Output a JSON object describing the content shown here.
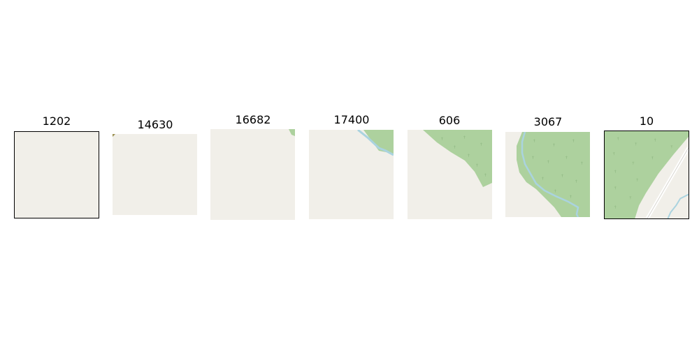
{
  "tiles": [
    {
      "label": "1202",
      "content": "blank land"
    },
    {
      "label": "14630",
      "content": "blank land"
    },
    {
      "label": "16682",
      "content": "land with forest corner"
    },
    {
      "label": "17400",
      "content": "land with forest and stream"
    },
    {
      "label": "606",
      "content": "land with forest"
    },
    {
      "label": "3067",
      "content": "forest with stream"
    },
    {
      "label": "10",
      "content": "forest with road and stream"
    }
  ],
  "colors": {
    "land": "#f1efe9",
    "forest": "#add19e",
    "forest_symbol": "#8fb781",
    "water": "#aad3df",
    "road": "#ffffff"
  }
}
